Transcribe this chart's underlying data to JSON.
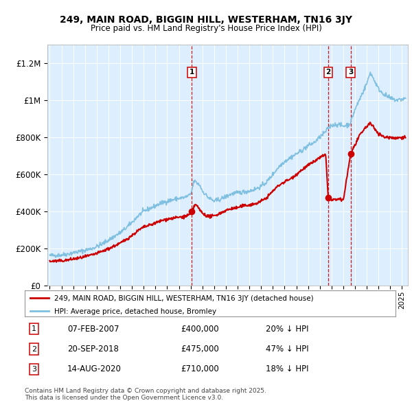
{
  "title": "249, MAIN ROAD, BIGGIN HILL, WESTERHAM, TN16 3JY",
  "subtitle": "Price paid vs. HM Land Registry's House Price Index (HPI)",
  "legend_line1": "249, MAIN ROAD, BIGGIN HILL, WESTERHAM, TN16 3JY (detached house)",
  "legend_line2": "HPI: Average price, detached house, Bromley",
  "copyright": "Contains HM Land Registry data © Crown copyright and database right 2025.\nThis data is licensed under the Open Government Licence v3.0.",
  "transactions": [
    {
      "num": "1",
      "date": "07-FEB-2007",
      "price": "£400,000",
      "hpi": "20% ↓ HPI",
      "year": 2007.1,
      "price_val": 400000
    },
    {
      "num": "2",
      "date": "20-SEP-2018",
      "price": "£475,000",
      "hpi": "47% ↓ HPI",
      "year": 2018.72,
      "price_val": 475000
    },
    {
      "num": "3",
      "date": "14-AUG-2020",
      "price": "£710,000",
      "hpi": "18% ↓ HPI",
      "year": 2020.62,
      "price_val": 710000
    }
  ],
  "hpi_color": "#7fbfdf",
  "price_color": "#cc0000",
  "vline_color": "#cc0000",
  "plot_bg": "#ddeeff",
  "ylim_max": 1300000,
  "xlim_start": 1994.8,
  "xlim_end": 2025.5,
  "hpi_breakpoints": [
    [
      1995.0,
      162000
    ],
    [
      1995.5,
      163000
    ],
    [
      1996.0,
      165000
    ],
    [
      1996.5,
      170000
    ],
    [
      1997.0,
      177000
    ],
    [
      1997.5,
      183000
    ],
    [
      1998.0,
      190000
    ],
    [
      1998.5,
      198000
    ],
    [
      1999.0,
      210000
    ],
    [
      1999.5,
      225000
    ],
    [
      2000.0,
      245000
    ],
    [
      2000.5,
      265000
    ],
    [
      2001.0,
      285000
    ],
    [
      2001.5,
      310000
    ],
    [
      2002.0,
      340000
    ],
    [
      2002.5,
      375000
    ],
    [
      2003.0,
      400000
    ],
    [
      2003.5,
      415000
    ],
    [
      2004.0,
      430000
    ],
    [
      2004.5,
      445000
    ],
    [
      2005.0,
      455000
    ],
    [
      2005.5,
      463000
    ],
    [
      2006.0,
      470000
    ],
    [
      2006.5,
      475000
    ],
    [
      2007.0,
      490000
    ],
    [
      2007.3,
      565000
    ],
    [
      2007.8,
      540000
    ],
    [
      2008.0,
      510000
    ],
    [
      2008.5,
      475000
    ],
    [
      2009.0,
      455000
    ],
    [
      2009.5,
      465000
    ],
    [
      2010.0,
      480000
    ],
    [
      2010.5,
      495000
    ],
    [
      2011.0,
      500000
    ],
    [
      2011.5,
      505000
    ],
    [
      2012.0,
      510000
    ],
    [
      2012.5,
      520000
    ],
    [
      2013.0,
      535000
    ],
    [
      2013.5,
      560000
    ],
    [
      2014.0,
      600000
    ],
    [
      2014.5,
      640000
    ],
    [
      2015.0,
      670000
    ],
    [
      2015.5,
      690000
    ],
    [
      2016.0,
      710000
    ],
    [
      2016.5,
      730000
    ],
    [
      2017.0,
      755000
    ],
    [
      2017.5,
      770000
    ],
    [
      2018.0,
      800000
    ],
    [
      2018.5,
      830000
    ],
    [
      2018.72,
      850000
    ],
    [
      2019.0,
      865000
    ],
    [
      2019.5,
      870000
    ],
    [
      2020.0,
      860000
    ],
    [
      2020.5,
      870000
    ],
    [
      2020.62,
      880000
    ],
    [
      2021.0,
      950000
    ],
    [
      2021.5,
      1020000
    ],
    [
      2022.0,
      1090000
    ],
    [
      2022.3,
      1150000
    ],
    [
      2022.7,
      1100000
    ],
    [
      2023.0,
      1060000
    ],
    [
      2023.5,
      1030000
    ],
    [
      2024.0,
      1010000
    ],
    [
      2024.5,
      1000000
    ],
    [
      2025.0,
      1005000
    ],
    [
      2025.3,
      1010000
    ]
  ],
  "red_breakpoints": [
    [
      1995.0,
      130000
    ],
    [
      1995.5,
      132000
    ],
    [
      1996.0,
      133000
    ],
    [
      1996.5,
      137000
    ],
    [
      1997.0,
      143000
    ],
    [
      1997.5,
      148000
    ],
    [
      1998.0,
      155000
    ],
    [
      1998.5,
      163000
    ],
    [
      1999.0,
      173000
    ],
    [
      1999.5,
      185000
    ],
    [
      2000.0,
      198000
    ],
    [
      2000.5,
      213000
    ],
    [
      2001.0,
      228000
    ],
    [
      2001.5,
      248000
    ],
    [
      2002.0,
      270000
    ],
    [
      2002.5,
      295000
    ],
    [
      2003.0,
      315000
    ],
    [
      2003.5,
      325000
    ],
    [
      2004.0,
      337000
    ],
    [
      2004.5,
      350000
    ],
    [
      2005.0,
      358000
    ],
    [
      2005.5,
      363000
    ],
    [
      2006.0,
      368000
    ],
    [
      2006.5,
      372000
    ],
    [
      2007.0,
      385000
    ],
    [
      2007.1,
      400000
    ],
    [
      2007.4,
      440000
    ],
    [
      2007.7,
      415000
    ],
    [
      2008.0,
      390000
    ],
    [
      2008.5,
      372000
    ],
    [
      2009.0,
      375000
    ],
    [
      2009.5,
      390000
    ],
    [
      2010.0,
      405000
    ],
    [
      2010.5,
      415000
    ],
    [
      2011.0,
      420000
    ],
    [
      2011.5,
      430000
    ],
    [
      2012.0,
      435000
    ],
    [
      2012.5,
      440000
    ],
    [
      2013.0,
      455000
    ],
    [
      2013.5,
      475000
    ],
    [
      2014.0,
      510000
    ],
    [
      2014.5,
      540000
    ],
    [
      2015.0,
      560000
    ],
    [
      2015.5,
      575000
    ],
    [
      2016.0,
      600000
    ],
    [
      2016.5,
      625000
    ],
    [
      2017.0,
      648000
    ],
    [
      2017.5,
      668000
    ],
    [
      2018.0,
      690000
    ],
    [
      2018.5,
      705000
    ],
    [
      2018.72,
      475000
    ],
    [
      2019.0,
      460000
    ],
    [
      2019.5,
      465000
    ],
    [
      2020.0,
      460000
    ],
    [
      2020.62,
      710000
    ],
    [
      2021.0,
      760000
    ],
    [
      2021.5,
      820000
    ],
    [
      2022.0,
      860000
    ],
    [
      2022.3,
      875000
    ],
    [
      2022.7,
      845000
    ],
    [
      2023.0,
      820000
    ],
    [
      2023.5,
      800000
    ],
    [
      2024.0,
      800000
    ],
    [
      2024.5,
      795000
    ],
    [
      2025.0,
      800000
    ],
    [
      2025.3,
      800000
    ]
  ]
}
